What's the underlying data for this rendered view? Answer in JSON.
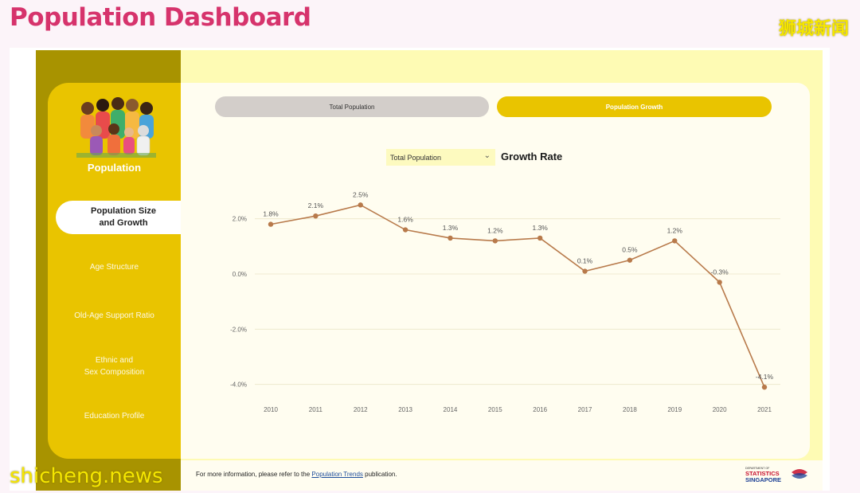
{
  "page_title": "Population Dashboard",
  "watermarks": {
    "top_right": "狮城新闻",
    "bottom_left": "shicheng.news"
  },
  "sidebar": {
    "heading": "Population",
    "items": [
      {
        "label": "Population Size\nand Growth",
        "active": true
      },
      {
        "label": "Age Structure",
        "active": false
      },
      {
        "label": "Old-Age Support Ratio",
        "active": false
      },
      {
        "label": "Ethnic and\nSex Composition",
        "active": false
      },
      {
        "label": "Education Profile",
        "active": false
      }
    ]
  },
  "toggle": {
    "total_label": "Total Population",
    "growth_label": "Population Growth"
  },
  "dropdown": {
    "selected": "Total Population"
  },
  "chart_title": "Growth Rate",
  "chart_data": {
    "type": "line",
    "categories": [
      "2010",
      "2011",
      "2012",
      "2013",
      "2014",
      "2015",
      "2016",
      "2017",
      "2018",
      "2019",
      "2020",
      "2021"
    ],
    "values": [
      1.8,
      2.1,
      2.5,
      1.6,
      1.3,
      1.2,
      1.3,
      0.1,
      0.5,
      1.2,
      -0.3,
      -4.1
    ],
    "data_labels": [
      "1.8%",
      "2.1%",
      "2.5%",
      "1.6%",
      "1.3%",
      "1.2%",
      "1.3%",
      "0.1%",
      "0.5%",
      "1.2%",
      "-0.3%",
      "-4.1%"
    ],
    "y_ticks": [
      2,
      0,
      -2,
      -4
    ],
    "y_tick_labels": [
      "2.0%",
      "0.0%",
      "-2.0%",
      "-4.0%"
    ],
    "ylim": [
      -4.5,
      3.0
    ],
    "grid": true,
    "line_color": "#b87a4b"
  },
  "footer": {
    "prefix": "For more information, please refer to the ",
    "link": "Population Trends",
    "suffix": " publication."
  },
  "logo": {
    "line1": "DEPARTMENT OF",
    "line2": "STATISTICS",
    "line3": "SINGAPORE"
  },
  "colors": {
    "title": "#d6336c",
    "accent": "#e9c400",
    "sidebar_dark": "#a89300"
  }
}
